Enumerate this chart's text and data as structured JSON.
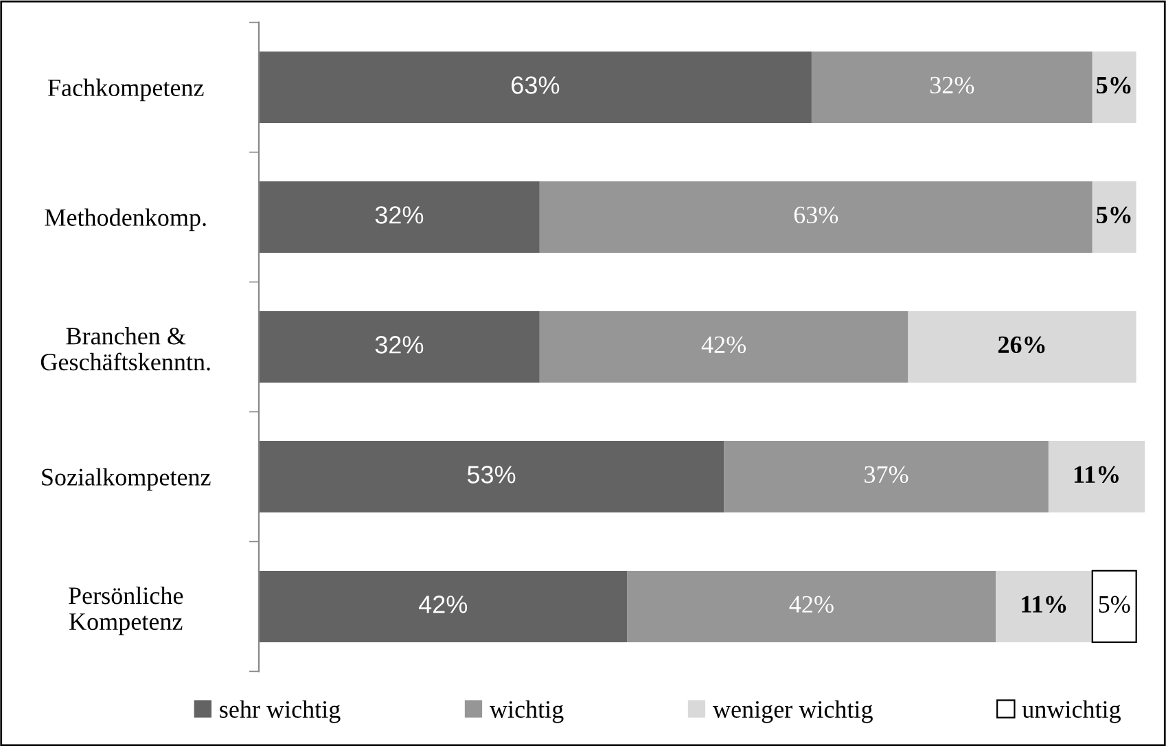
{
  "chart_data": {
    "type": "bar",
    "orientation": "horizontal",
    "stacked": true,
    "categories": [
      "Fachkompetenz",
      "Methodenkomp.",
      "Branchen &\nGeschäftskenntn.",
      "Sozialkompetenz",
      "Persönliche\nKompetenz"
    ],
    "series": [
      {
        "name": "sehr wichtig",
        "color": "#636363",
        "values": [
          63,
          32,
          32,
          53,
          42
        ],
        "value_labels": [
          "63%",
          "32%",
          "32%",
          "53%",
          "42%"
        ]
      },
      {
        "name": "wichtig",
        "color": "#969696",
        "values": [
          32,
          63,
          42,
          37,
          42
        ],
        "value_labels": [
          "32%",
          "63%",
          "42%",
          "37%",
          "42%"
        ]
      },
      {
        "name": "weniger wichtig",
        "color": "#d9d9d9",
        "values": [
          5,
          5,
          26,
          11,
          11
        ],
        "value_labels": [
          "5%",
          "5%",
          "26%",
          "11%",
          "11%"
        ]
      },
      {
        "name": "unwichtig",
        "color": "#ffffff",
        "values": [
          null,
          null,
          null,
          null,
          5
        ],
        "value_labels": [
          null,
          null,
          null,
          null,
          "5%"
        ]
      }
    ],
    "legend": "bottom"
  }
}
